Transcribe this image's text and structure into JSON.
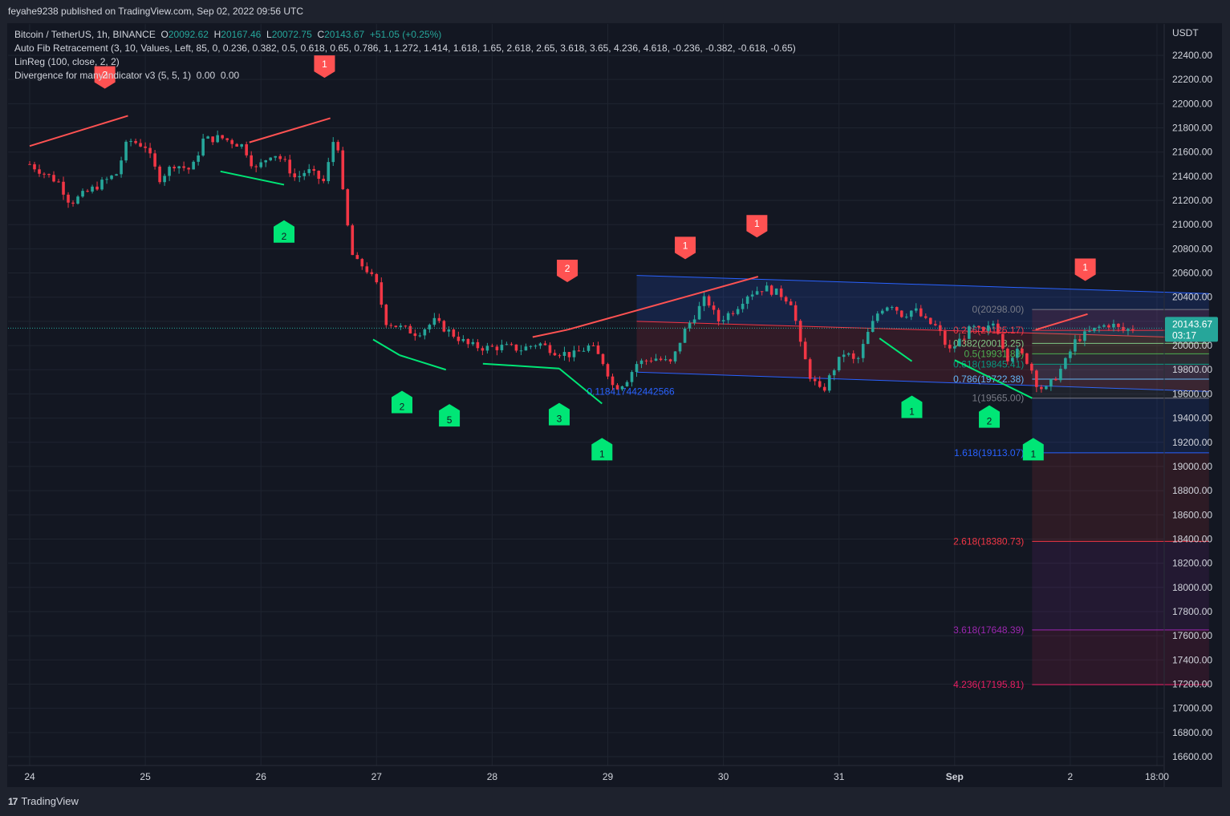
{
  "header": {
    "published": "feyahe9238 published on TradingView.com, Sep 02, 2022 09:56 UTC"
  },
  "legend": {
    "symbol": "Bitcoin / TetherUS, 1h, BINANCE",
    "o_label": "O",
    "o": "20092.62",
    "h_label": "H",
    "h": "20167.46",
    "l_label": "L",
    "l": "20072.75",
    "c_label": "C",
    "c": "20143.67",
    "change": "+51.05 (+0.25%)",
    "fib": "Auto Fib Retracement (3, 10, Values, Left, 85, 0, 0.236, 0.382, 0.5, 0.618, 0.65, 0.786, 1, 1.272, 1.414, 1.618, 1.65, 2.618, 2.65, 3.618, 3.65, 4.236, 4.618, -0.236, -0.382, -0.618, -0.65)",
    "linreg": "LinReg (100, close, 2, 2)",
    "divergence": "Divergence for many indicator v3 (5, 5, 1)",
    "div_v1": "0.00",
    "div_v2": "0.00"
  },
  "footer": {
    "brand": "TradingView",
    "logo": "17"
  },
  "colors": {
    "bg": "#131722",
    "up": "#26a69a",
    "down": "#f23645",
    "bull_marker": "#00e676",
    "bear_marker": "#ff5252",
    "grid": "#1f2430"
  },
  "chart_data": {
    "type": "candlestick",
    "currency": "USDT",
    "y_ticks": [
      "22400.00",
      "22200.00",
      "22000.00",
      "21800.00",
      "21600.00",
      "21400.00",
      "21200.00",
      "21000.00",
      "20800.00",
      "20600.00",
      "20400.00",
      "20200.00",
      "20000.00",
      "19800.00",
      "19600.00",
      "19400.00",
      "19200.00",
      "19000.00",
      "18800.00",
      "18600.00",
      "18400.00",
      "18200.00",
      "18000.00",
      "17800.00",
      "17600.00",
      "17400.00",
      "17200.00",
      "17000.00",
      "16800.00",
      "16600.00"
    ],
    "ylim": [
      16600,
      22400
    ],
    "x_labels": [
      "24",
      "25",
      "26",
      "27",
      "28",
      "29",
      "30",
      "31",
      "Sep",
      "2",
      "18:00"
    ],
    "x_label_days": [
      24,
      25,
      26,
      27,
      28,
      29,
      30,
      31,
      32,
      33,
      33.75
    ],
    "last_price": "20143.67",
    "countdown": "03:17",
    "price_path": [
      {
        "d": 24.0,
        "p": 21500
      },
      {
        "d": 24.25,
        "p": 21350
      },
      {
        "d": 24.35,
        "p": 21180
      },
      {
        "d": 24.55,
        "p": 21300
      },
      {
        "d": 24.75,
        "p": 21420
      },
      {
        "d": 24.85,
        "p": 21700
      },
      {
        "d": 25.0,
        "p": 21650
      },
      {
        "d": 25.12,
        "p": 21380
      },
      {
        "d": 25.25,
        "p": 21500
      },
      {
        "d": 25.4,
        "p": 21450
      },
      {
        "d": 25.5,
        "p": 21700
      },
      {
        "d": 25.65,
        "p": 21720
      },
      {
        "d": 25.85,
        "p": 21650
      },
      {
        "d": 25.95,
        "p": 21450
      },
      {
        "d": 26.1,
        "p": 21600
      },
      {
        "d": 26.2,
        "p": 21520
      },
      {
        "d": 26.3,
        "p": 21380
      },
      {
        "d": 26.4,
        "p": 21450
      },
      {
        "d": 26.55,
        "p": 21350
      },
      {
        "d": 26.65,
        "p": 21800
      },
      {
        "d": 26.72,
        "p": 21150
      },
      {
        "d": 26.8,
        "p": 20700
      },
      {
        "d": 26.9,
        "p": 20650
      },
      {
        "d": 27.0,
        "p": 20500
      },
      {
        "d": 27.08,
        "p": 20200
      },
      {
        "d": 27.2,
        "p": 20150
      },
      {
        "d": 27.35,
        "p": 20100
      },
      {
        "d": 27.5,
        "p": 20200
      },
      {
        "d": 27.65,
        "p": 20100
      },
      {
        "d": 27.8,
        "p": 20000
      },
      {
        "d": 27.95,
        "p": 19980
      },
      {
        "d": 28.1,
        "p": 19990
      },
      {
        "d": 28.25,
        "p": 19970
      },
      {
        "d": 28.4,
        "p": 20020
      },
      {
        "d": 28.55,
        "p": 19950
      },
      {
        "d": 28.7,
        "p": 19920
      },
      {
        "d": 28.85,
        "p": 20000
      },
      {
        "d": 28.97,
        "p": 19850
      },
      {
        "d": 29.05,
        "p": 19650
      },
      {
        "d": 29.15,
        "p": 19700
      },
      {
        "d": 29.25,
        "p": 19850
      },
      {
        "d": 29.4,
        "p": 19900
      },
      {
        "d": 29.55,
        "p": 19850
      },
      {
        "d": 29.65,
        "p": 20100
      },
      {
        "d": 29.75,
        "p": 20250
      },
      {
        "d": 29.85,
        "p": 20400
      },
      {
        "d": 29.95,
        "p": 20200
      },
      {
        "d": 30.1,
        "p": 20300
      },
      {
        "d": 30.2,
        "p": 20420
      },
      {
        "d": 30.35,
        "p": 20480
      },
      {
        "d": 30.5,
        "p": 20420
      },
      {
        "d": 30.6,
        "p": 20350
      },
      {
        "d": 30.65,
        "p": 20050
      },
      {
        "d": 30.75,
        "p": 19750
      },
      {
        "d": 30.85,
        "p": 19600
      },
      {
        "d": 30.95,
        "p": 19800
      },
      {
        "d": 31.05,
        "p": 19950
      },
      {
        "d": 31.15,
        "p": 19850
      },
      {
        "d": 31.25,
        "p": 20100
      },
      {
        "d": 31.35,
        "p": 20300
      },
      {
        "d": 31.45,
        "p": 20350
      },
      {
        "d": 31.55,
        "p": 20250
      },
      {
        "d": 31.65,
        "p": 20300
      },
      {
        "d": 31.75,
        "p": 20200
      },
      {
        "d": 31.85,
        "p": 20150
      },
      {
        "d": 31.95,
        "p": 19950
      },
      {
        "d": 32.05,
        "p": 20050
      },
      {
        "d": 32.15,
        "p": 20150
      },
      {
        "d": 32.25,
        "p": 20100
      },
      {
        "d": 32.35,
        "p": 20200
      },
      {
        "d": 32.45,
        "p": 19900
      },
      {
        "d": 32.55,
        "p": 19950
      },
      {
        "d": 32.65,
        "p": 19850
      },
      {
        "d": 32.7,
        "p": 19700
      },
      {
        "d": 32.78,
        "p": 19620
      },
      {
        "d": 32.88,
        "p": 19750
      },
      {
        "d": 32.95,
        "p": 19850
      },
      {
        "d": 33.05,
        "p": 20050
      },
      {
        "d": 33.15,
        "p": 20100
      },
      {
        "d": 33.25,
        "p": 20150
      },
      {
        "d": 33.35,
        "p": 20180
      },
      {
        "d": 33.45,
        "p": 20120
      },
      {
        "d": 33.55,
        "p": 20143.67
      }
    ],
    "linreg_channel": {
      "start_day": 29.25,
      "end_day": 34.2,
      "upper": [
        20580,
        20430
      ],
      "middle": [
        20200,
        20060
      ],
      "lower": [
        19780,
        19620
      ]
    },
    "fib": {
      "start_day": 32.67,
      "end_day": 34.2,
      "label_day": 32.6,
      "levels": [
        {
          "label": "0(20298.00)",
          "price": 20298.0,
          "color": "#787b86"
        },
        {
          "label": "0.236(20125.17)",
          "price": 20125.17,
          "color": "#f23645"
        },
        {
          "label": "0.382(20018.25)",
          "price": 20018.25,
          "color": "#81c784"
        },
        {
          "label": "0.5(19931.88)",
          "price": 19931.88,
          "color": "#4caf50"
        },
        {
          "label": "0.618(19845.41)",
          "price": 19845.41,
          "color": "#089981"
        },
        {
          "label": "0.786(19722.38)",
          "price": 19722.38,
          "color": "#64b5f6"
        },
        {
          "label": "1(19565.00)",
          "price": 19565.0,
          "color": "#787b86"
        },
        {
          "label": "1.618(19113.07)",
          "price": 19113.07,
          "color": "#2962ff"
        },
        {
          "label": "2.618(18380.73)",
          "price": 18380.73,
          "color": "#f23645"
        },
        {
          "label": "3.618(17648.39)",
          "price": 17648.39,
          "color": "#9c27b0"
        },
        {
          "label": "4.236(17195.81)",
          "price": 17195.81,
          "color": "#e91e63"
        }
      ]
    },
    "fib_extra_label": {
      "text": "0.118417442442566",
      "day": 28.93,
      "price": 19620,
      "color": "#2962ff"
    },
    "bear_divergence_lines": [
      {
        "d1": 24.0,
        "p1": 21650,
        "d2": 24.85,
        "p2": 21900
      },
      {
        "d1": 25.9,
        "p1": 21680,
        "d2": 26.6,
        "p2": 21880
      },
      {
        "d1": 28.35,
        "p1": 20070,
        "d2": 28.65,
        "p2": 20130
      },
      {
        "d1": 28.65,
        "p1": 20130,
        "d2": 30.3,
        "p2": 20570
      },
      {
        "d1": 32.7,
        "p1": 20130,
        "d2": 33.15,
        "p2": 20260
      }
    ],
    "bull_divergence_lines": [
      {
        "d1": 25.65,
        "p1": 21440,
        "d2": 26.2,
        "p2": 21330
      },
      {
        "d1": 26.97,
        "p1": 20050,
        "d2": 27.2,
        "p2": 19920
      },
      {
        "d1": 27.2,
        "p1": 19920,
        "d2": 27.6,
        "p2": 19800
      },
      {
        "d1": 27.92,
        "p1": 19850,
        "d2": 28.58,
        "p2": 19810
      },
      {
        "d1": 28.58,
        "p1": 19810,
        "d2": 28.95,
        "p2": 19520
      },
      {
        "d1": 31.35,
        "p1": 20060,
        "d2": 31.63,
        "p2": 19870
      },
      {
        "d1": 32.0,
        "p1": 19880,
        "d2": 32.67,
        "p2": 19565
      }
    ],
    "bear_markers": [
      {
        "day": 24.65,
        "price": 22230,
        "label": "2"
      },
      {
        "day": 26.55,
        "price": 22320,
        "label": "1"
      },
      {
        "day": 28.65,
        "price": 20630,
        "label": "2"
      },
      {
        "day": 29.67,
        "price": 20820,
        "label": "1"
      },
      {
        "day": 30.29,
        "price": 21000,
        "label": "1"
      },
      {
        "day": 33.13,
        "price": 20640,
        "label": "1"
      }
    ],
    "bull_markers": [
      {
        "day": 26.2,
        "price": 20930,
        "label": "2"
      },
      {
        "day": 27.22,
        "price": 19520,
        "label": "2"
      },
      {
        "day": 27.63,
        "price": 19410,
        "label": "5"
      },
      {
        "day": 28.58,
        "price": 19420,
        "label": "3"
      },
      {
        "day": 28.95,
        "price": 19130,
        "label": "1"
      },
      {
        "day": 31.63,
        "price": 19480,
        "label": "1"
      },
      {
        "day": 32.3,
        "price": 19400,
        "label": "2"
      },
      {
        "day": 32.68,
        "price": 19130,
        "label": "1"
      }
    ]
  }
}
